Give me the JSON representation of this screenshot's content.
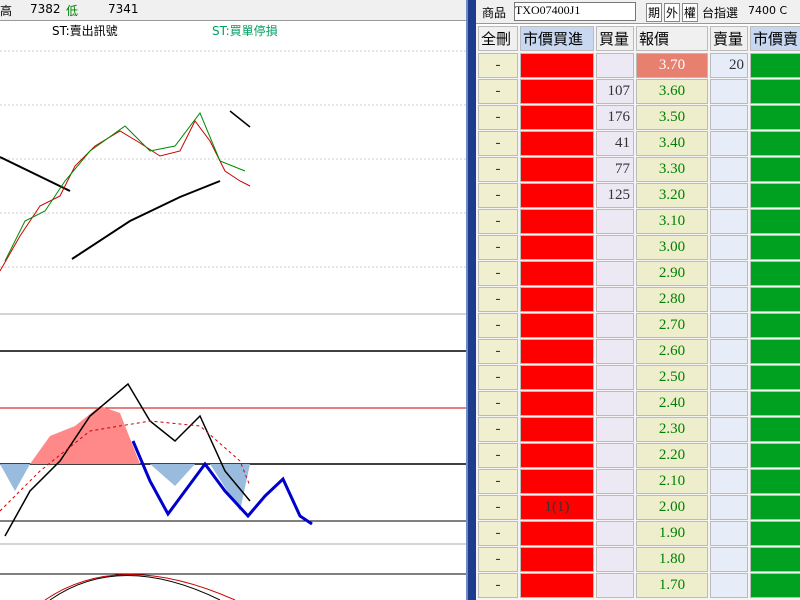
{
  "quote_bar": {
    "high_label": "高",
    "high": "7382",
    "low_label": "低",
    "low": "7341"
  },
  "chart": {
    "sell_signal": "ST:賣出訊號",
    "buy_stop": "ST:買單停損"
  },
  "order_panel": {
    "product_label": "商品",
    "product": "TXO07400J1",
    "tabs": [
      "期",
      "外",
      "權"
    ],
    "index_label": "台指選",
    "strike": "7400 C",
    "columns": [
      "全刪",
      "市價買進",
      "買量",
      "報價",
      "賣量",
      "市價賣"
    ],
    "rows": [
      {
        "del": "-",
        "price": "3.70",
        "sell": 20
      },
      {
        "del": "-",
        "buy": 107,
        "price": "3.60"
      },
      {
        "del": "-",
        "buy": 176,
        "price": "3.50"
      },
      {
        "del": "-",
        "buy": 41,
        "price": "3.40"
      },
      {
        "del": "-",
        "buy": 77,
        "price": "3.30"
      },
      {
        "del": "-",
        "buy": 125,
        "price": "3.20"
      },
      {
        "del": "-",
        "price": "3.10"
      },
      {
        "del": "-",
        "price": "3.00"
      },
      {
        "del": "-",
        "price": "2.90"
      },
      {
        "del": "-",
        "price": "2.80"
      },
      {
        "del": "-",
        "price": "2.70"
      },
      {
        "del": "-",
        "price": "2.60"
      },
      {
        "del": "-",
        "price": "2.50"
      },
      {
        "del": "-",
        "price": "2.40"
      },
      {
        "del": "-",
        "price": "2.30"
      },
      {
        "del": "-",
        "price": "2.20"
      },
      {
        "del": "-",
        "price": "2.10"
      },
      {
        "del": "-",
        "market_buy": "1(1)",
        "price": "2.00"
      },
      {
        "del": "-",
        "price": "1.90"
      },
      {
        "del": "-",
        "price": "1.80"
      },
      {
        "del": "-",
        "price": "1.70"
      }
    ]
  }
}
